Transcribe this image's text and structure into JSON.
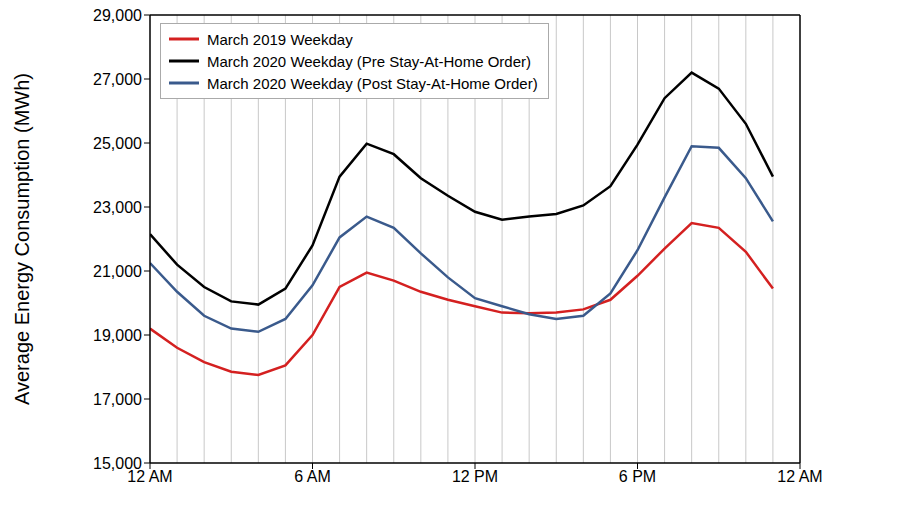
{
  "chart_data": {
    "type": "line",
    "ylabel": "Average Energy Consumption (MWh)",
    "x": [
      0,
      1,
      2,
      3,
      4,
      5,
      6,
      7,
      8,
      9,
      10,
      11,
      12,
      13,
      14,
      15,
      16,
      17,
      18,
      19,
      20,
      21,
      22,
      23
    ],
    "series": [
      {
        "name": "March 2019 Weekday",
        "color": "#d42020",
        "values": [
          19200,
          18600,
          18150,
          17850,
          17750,
          18050,
          19000,
          20500,
          20950,
          20700,
          20350,
          20100,
          19900,
          19700,
          19680,
          19700,
          19800,
          20100,
          20850,
          21700,
          22500,
          22350,
          21600,
          20450
        ]
      },
      {
        "name": "March 2020 Weekday (Pre Stay-At-Home Order)",
        "color": "#000000",
        "values": [
          22150,
          21200,
          20500,
          20050,
          19950,
          20450,
          21800,
          23950,
          24980,
          24650,
          23900,
          23350,
          22850,
          22600,
          22700,
          22780,
          23050,
          23650,
          24950,
          26400,
          27200,
          26700,
          25600,
          23950
        ]
      },
      {
        "name": "March 2020 Weekday (Post Stay-At-Home Order)",
        "color": "#3a5a8c",
        "values": [
          21250,
          20350,
          19600,
          19200,
          19100,
          19500,
          20550,
          22050,
          22700,
          22350,
          21550,
          20800,
          20150,
          19900,
          19650,
          19500,
          19600,
          20300,
          21650,
          23300,
          24900,
          24850,
          23900,
          22550
        ]
      }
    ],
    "xlim": [
      0,
      24
    ],
    "xticks": [
      {
        "value": 0,
        "label": "12 AM"
      },
      {
        "value": 6,
        "label": "6 AM"
      },
      {
        "value": 12,
        "label": "12 PM"
      },
      {
        "value": 18,
        "label": "6 PM"
      },
      {
        "value": 24,
        "label": "12 AM"
      }
    ],
    "ylim": [
      15000,
      29000
    ],
    "yticks": [
      {
        "value": 15000,
        "label": "15,000"
      },
      {
        "value": 17000,
        "label": "17,000"
      },
      {
        "value": 19000,
        "label": "19,000"
      },
      {
        "value": 21000,
        "label": "21,000"
      },
      {
        "value": 23000,
        "label": "23,000"
      },
      {
        "value": 25000,
        "label": "25,000"
      },
      {
        "value": 27000,
        "label": "27,000"
      },
      {
        "value": 29000,
        "label": "29,000"
      }
    ],
    "grid": true,
    "legend": "upper left"
  }
}
